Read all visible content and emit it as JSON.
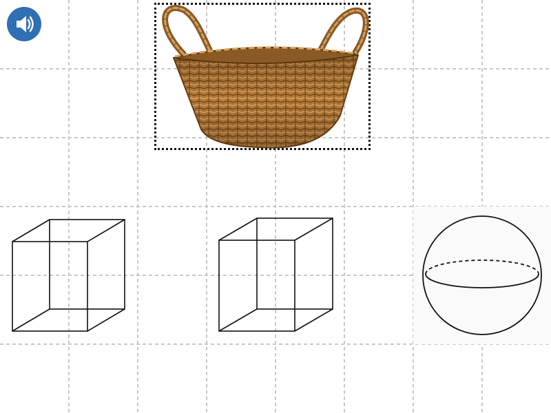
{
  "speaker": {
    "icon": "speaker-icon"
  },
  "prompt": {
    "object": "basket-image",
    "frame": "dotted"
  },
  "choices": [
    {
      "icon": "cube-icon"
    },
    {
      "icon": "cube-icon"
    },
    {
      "icon": "sphere-icon"
    }
  ],
  "colors": {
    "speaker_bg": "#2f6fb3",
    "grid_line": "#c8c8c8",
    "shape_stroke": "#111111",
    "basket_wood": "#b37a38"
  }
}
